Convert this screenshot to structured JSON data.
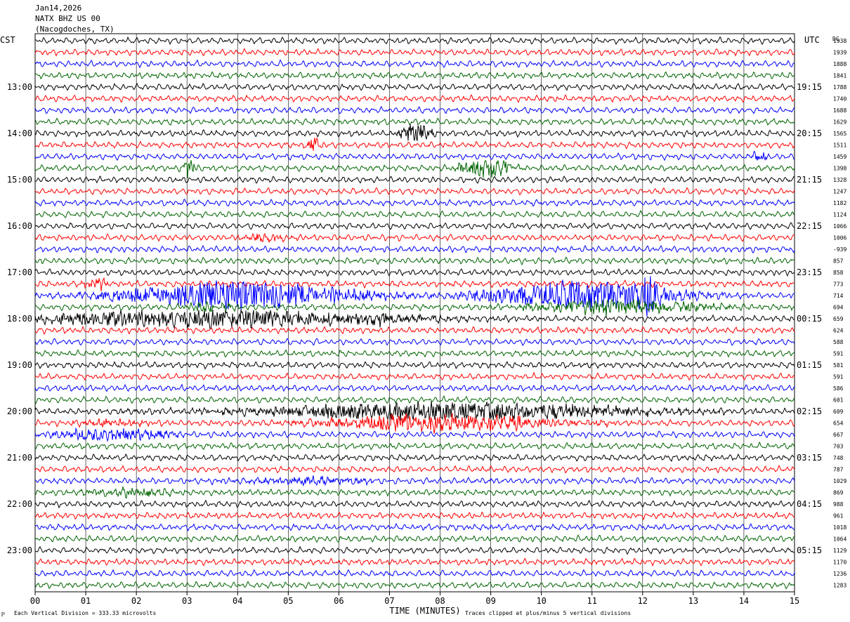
{
  "header": {
    "date": "Jan14,2026",
    "station": "NATX BHZ US 00",
    "location": "(Nacogdoches, TX)"
  },
  "chart_data": {
    "type": "line",
    "title": "",
    "xlabel": "TIME (MINUTES)",
    "left_axis_label": "CST",
    "right_axis_label": "UTC",
    "dc_label": "DC",
    "x_ticks": [
      "00",
      "01",
      "02",
      "03",
      "04",
      "05",
      "06",
      "07",
      "08",
      "09",
      "10",
      "11",
      "12",
      "13",
      "14",
      "15"
    ],
    "xlim": [
      0,
      15
    ],
    "left_time_labels": [
      "13:00",
      "14:00",
      "15:00",
      "16:00",
      "17:00",
      "18:00",
      "19:00",
      "20:00",
      "21:00",
      "22:00",
      "23:00"
    ],
    "right_time_labels": [
      "19:15",
      "20:15",
      "21:15",
      "22:15",
      "23:15",
      "00:15",
      "01:15",
      "02:15",
      "03:15",
      "04:15",
      "05:15"
    ],
    "trace_colors": [
      "#000000",
      "#ff0000",
      "#0000ff",
      "#006400"
    ],
    "dc_values": [
      "1938",
      "1939",
      "1888",
      "1841",
      "1788",
      "1740",
      "1688",
      "1629",
      "1565",
      "1511",
      "1459",
      "1398",
      "1328",
      "1247",
      "1182",
      "1124",
      "1066",
      "1006",
      "-939",
      "857",
      "858",
      "773",
      "714",
      "694",
      "659",
      "624",
      "588",
      "591",
      "581",
      "591",
      "586",
      "601",
      "609",
      "654",
      "667",
      "703",
      "748",
      "787",
      "1029",
      "869",
      "988",
      "961",
      "1018",
      "1064",
      "1129",
      "1170",
      "1236",
      "1283"
    ],
    "trace_count": 48,
    "bottom_left_note": "Each Vertical Division =  333.33 microvolts",
    "bottom_right_note": "Traces clipped at plus/minus 5 vertical divisions",
    "corner_mark": "ℙ"
  }
}
